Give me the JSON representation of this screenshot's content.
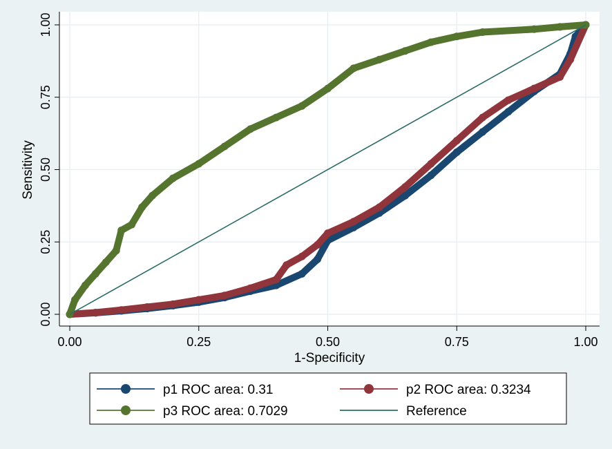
{
  "chart_data": {
    "type": "line",
    "title": "",
    "xlabel": "1-Specificity",
    "ylabel": "Sensitivity",
    "xlim": [
      0,
      1
    ],
    "ylim": [
      0,
      1
    ],
    "x_ticks": [
      0,
      0.25,
      0.5,
      0.75,
      1
    ],
    "y_ticks": [
      0,
      0.25,
      0.5,
      0.75,
      1
    ],
    "x_tick_labels": [
      "0.00",
      "0.25",
      "0.50",
      "0.75",
      "1.00"
    ],
    "y_tick_labels": [
      "0.00",
      "0.25",
      "0.50",
      "0.75",
      "1.00"
    ],
    "grid": true,
    "legend_position": "bottom",
    "series": [
      {
        "name": "p1 ROC area: 0.31",
        "color": "#1a476f",
        "marker": "circle",
        "x": [
          0,
          0.05,
          0.1,
          0.15,
          0.2,
          0.25,
          0.3,
          0.35,
          0.4,
          0.45,
          0.48,
          0.5,
          0.55,
          0.6,
          0.65,
          0.7,
          0.75,
          0.8,
          0.85,
          0.9,
          0.95,
          0.97,
          0.98,
          1.0
        ],
        "y": [
          0,
          0.005,
          0.012,
          0.02,
          0.03,
          0.042,
          0.058,
          0.08,
          0.1,
          0.14,
          0.19,
          0.255,
          0.3,
          0.35,
          0.41,
          0.48,
          0.56,
          0.63,
          0.7,
          0.77,
          0.83,
          0.9,
          0.96,
          1.0
        ]
      },
      {
        "name": "p2 ROC area: 0.3234",
        "color": "#90353b",
        "marker": "circle",
        "x": [
          0,
          0.05,
          0.1,
          0.15,
          0.2,
          0.25,
          0.3,
          0.35,
          0.4,
          0.42,
          0.45,
          0.48,
          0.5,
          0.55,
          0.6,
          0.65,
          0.7,
          0.75,
          0.8,
          0.85,
          0.9,
          0.95,
          0.97,
          1.0
        ],
        "y": [
          0,
          0.006,
          0.015,
          0.025,
          0.035,
          0.05,
          0.065,
          0.09,
          0.12,
          0.17,
          0.2,
          0.24,
          0.28,
          0.32,
          0.37,
          0.44,
          0.52,
          0.6,
          0.68,
          0.74,
          0.78,
          0.82,
          0.88,
          1.0
        ]
      },
      {
        "name": "p3 ROC area: 0.7029",
        "color": "#55752f",
        "marker": "circle",
        "x": [
          0,
          0.01,
          0.03,
          0.05,
          0.07,
          0.09,
          0.1,
          0.12,
          0.14,
          0.16,
          0.2,
          0.25,
          0.3,
          0.35,
          0.4,
          0.45,
          0.5,
          0.55,
          0.6,
          0.65,
          0.7,
          0.75,
          0.8,
          0.9,
          0.95,
          1.0
        ],
        "y": [
          0,
          0.05,
          0.1,
          0.14,
          0.18,
          0.22,
          0.29,
          0.31,
          0.37,
          0.41,
          0.47,
          0.52,
          0.58,
          0.64,
          0.68,
          0.72,
          0.78,
          0.85,
          0.88,
          0.91,
          0.94,
          0.96,
          0.975,
          0.985,
          0.993,
          1.0
        ]
      },
      {
        "name": "Reference",
        "color": "#2d6d66",
        "marker": "none",
        "x": [
          0,
          1
        ],
        "y": [
          0,
          1
        ]
      }
    ]
  }
}
